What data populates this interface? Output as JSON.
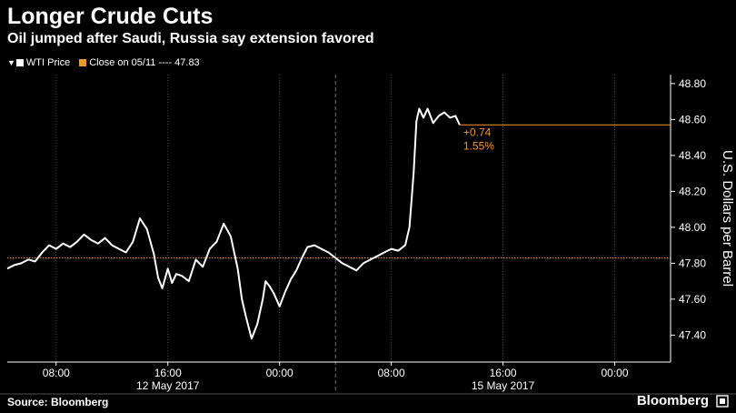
{
  "title": "Longer Crude Cuts",
  "subtitle": "Oil jumped after Saudi, Russia say extension favored",
  "legend": {
    "series_label": "WTI Price",
    "close_label": "Close on 05/11 ---- 47.83"
  },
  "source": "Source: Bloomberg",
  "brand": "Bloomberg",
  "colors": {
    "background": "#000000",
    "line": "#ffffff",
    "close_line": "#f29a1e",
    "annotation": "#f29a1e",
    "grid": "#5a5a5a"
  },
  "icons": {
    "legend_pin": "pin-icon",
    "brand": "bloomberg-mark-icon"
  },
  "chart_data": {
    "type": "line",
    "title": "Longer Crude Cuts",
    "subtitle": "Oil jumped after Saudi, Russia say extension favored",
    "ylabel": "U.S. Dollars per Barrel",
    "ylim": [
      47.25,
      48.85
    ],
    "xlim": [
      4.5,
      52
    ],
    "yticks": [
      47.4,
      47.6,
      47.8,
      48.0,
      48.2,
      48.4,
      48.6,
      48.8
    ],
    "ytick_labels": [
      "47.40",
      "47.60",
      "47.80",
      "48.00",
      "48.20",
      "48.40",
      "48.60",
      "48.80"
    ],
    "x_time_unit": "hours from 12 May 2017 00:00",
    "xticks": [
      8,
      16,
      24,
      32,
      40,
      48
    ],
    "xtick_labels": [
      "08:00",
      "16:00",
      "00:00",
      "08:00",
      "16:00",
      "00:00"
    ],
    "date_labels": [
      {
        "x": 16,
        "label": "12 May 2017"
      },
      {
        "x": 40,
        "label": "15 May 2017"
      }
    ],
    "session_divider_x": 28,
    "grid": {
      "vertical": true,
      "horizontal": false
    },
    "legend_position": "top-left",
    "reference_line": {
      "name": "Close on 05/11",
      "value": 47.83
    },
    "annotation": {
      "change": "+0.74",
      "percent": "1.55%",
      "level": 48.57,
      "x": 36.9
    },
    "series": [
      {
        "name": "WTI Price",
        "x": [
          4.5,
          5.0,
          5.5,
          6.0,
          6.5,
          7.0,
          7.5,
          8.0,
          8.5,
          9.0,
          9.5,
          10.0,
          10.5,
          11.0,
          11.5,
          12.0,
          12.5,
          13.0,
          13.5,
          14.0,
          14.5,
          15.0,
          15.3,
          15.6,
          16.0,
          16.3,
          16.6,
          17.0,
          17.5,
          18.0,
          18.5,
          19.0,
          19.5,
          20.0,
          20.5,
          21.0,
          21.3,
          21.6,
          22.0,
          22.4,
          22.8,
          23.0,
          23.3,
          23.6,
          24.0,
          24.4,
          24.8,
          25.2,
          25.6,
          26.0,
          26.5,
          27.0,
          27.5,
          28.0,
          28.5,
          29.0,
          29.5,
          30.0,
          30.5,
          31.0,
          31.5,
          32.0,
          32.5,
          33.0,
          33.3,
          33.6,
          33.8,
          34.0,
          34.3,
          34.6,
          35.0,
          35.4,
          35.8,
          36.2,
          36.6,
          36.9
        ],
        "values": [
          47.77,
          47.79,
          47.8,
          47.82,
          47.81,
          47.86,
          47.9,
          47.88,
          47.91,
          47.89,
          47.92,
          47.96,
          47.93,
          47.91,
          47.94,
          47.9,
          47.88,
          47.86,
          47.92,
          48.05,
          47.99,
          47.85,
          47.72,
          47.66,
          47.77,
          47.69,
          47.74,
          47.73,
          47.7,
          47.82,
          47.78,
          47.88,
          47.92,
          48.02,
          47.95,
          47.77,
          47.6,
          47.5,
          47.38,
          47.46,
          47.6,
          47.7,
          47.67,
          47.63,
          47.56,
          47.64,
          47.71,
          47.76,
          47.83,
          47.89,
          47.9,
          47.88,
          47.86,
          47.83,
          47.8,
          47.78,
          47.76,
          47.8,
          47.82,
          47.84,
          47.86,
          47.88,
          47.87,
          47.9,
          48.0,
          48.3,
          48.59,
          48.66,
          48.61,
          48.66,
          48.58,
          48.62,
          48.64,
          48.61,
          48.62,
          48.57
        ]
      }
    ]
  }
}
